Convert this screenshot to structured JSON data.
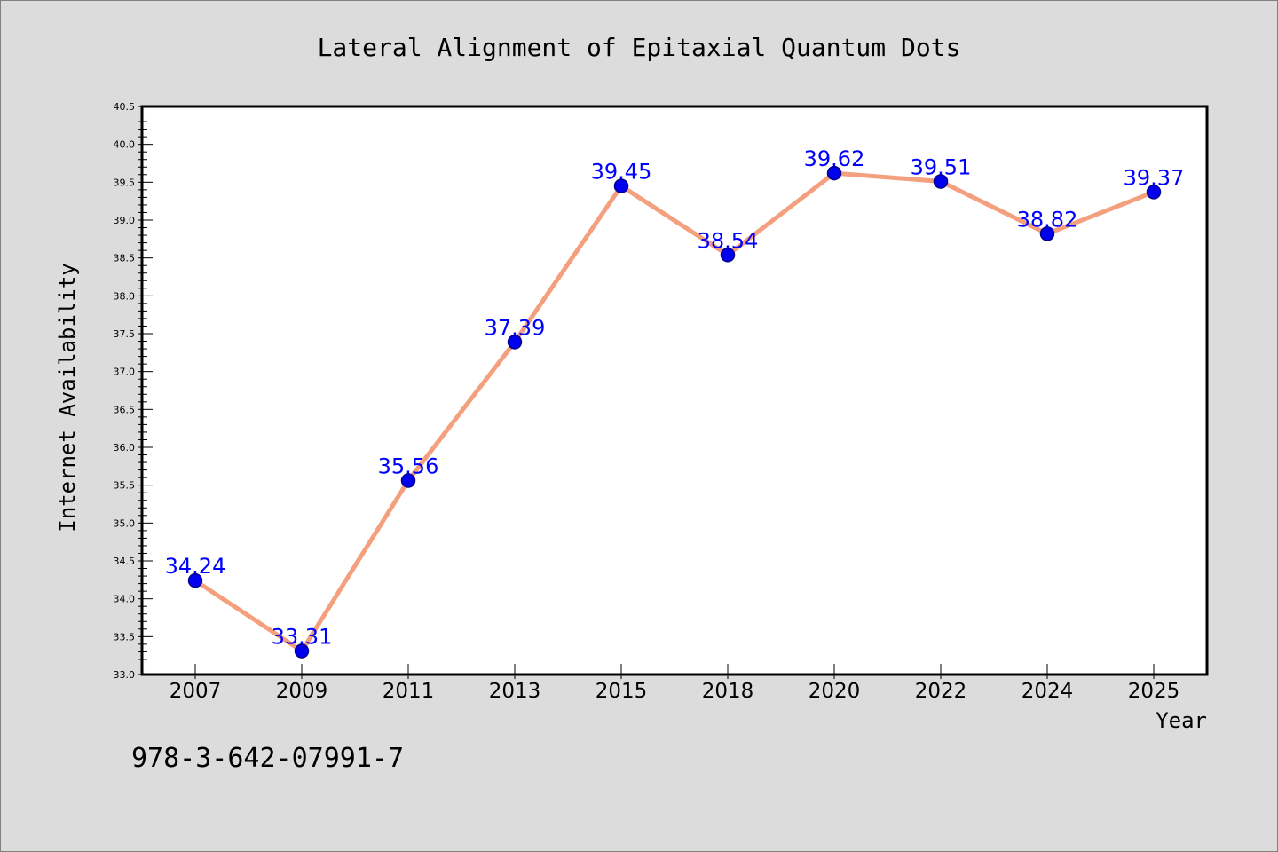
{
  "chart_data": {
    "type": "line",
    "title": "Lateral Alignment of Epitaxial Quantum Dots",
    "xlabel": "Year",
    "ylabel": "Internet Availability",
    "categories": [
      "2007",
      "2009",
      "2011",
      "2013",
      "2015",
      "2018",
      "2020",
      "2022",
      "2024",
      "2025"
    ],
    "values": [
      34.24,
      33.31,
      35.56,
      37.39,
      39.45,
      38.54,
      39.62,
      39.51,
      38.82,
      39.37
    ],
    "data_labels": [
      "34.24",
      "33.31",
      "35.56",
      "37.39",
      "39.45",
      "38.54",
      "39.62",
      "39.51",
      "38.82",
      "39.37"
    ],
    "ylim": [
      33.0,
      40.5
    ],
    "yticks": [
      "33.0",
      "33.5",
      "34.0",
      "34.5",
      "35.0",
      "35.5",
      "36.0",
      "36.5",
      "37.0",
      "37.5",
      "38.0",
      "38.5",
      "39.0",
      "39.5",
      "40.0",
      "40.5"
    ],
    "grid": false,
    "legend": "none",
    "colors": {
      "line": "#f4a07e",
      "marker": "#0000ee",
      "marker_edge": "#00008b",
      "data_label": "#0000ff",
      "background": "#dcdcdc",
      "plot_background": "#ffffff"
    }
  },
  "footer": {
    "isbn": "978-3-642-07991-7"
  }
}
